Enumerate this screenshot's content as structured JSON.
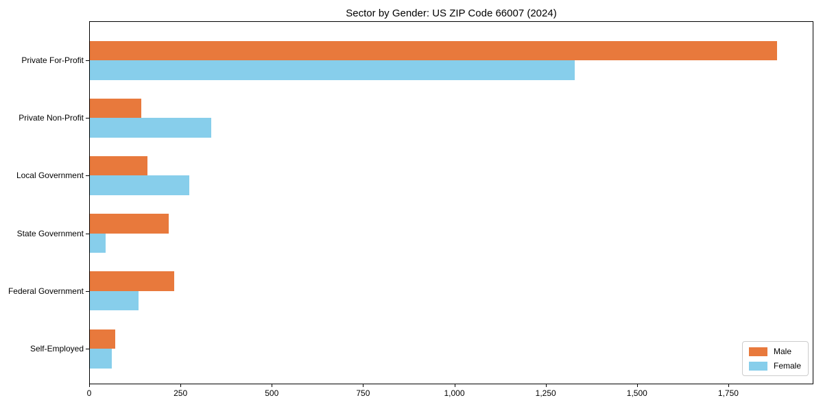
{
  "chart_data": {
    "type": "bar",
    "orientation": "horizontal",
    "title": "Sector by Gender: US ZIP Code 66007 (2024)",
    "categories": [
      "Private For-Profit",
      "Private Non-Profit",
      "Local Government",
      "State Government",
      "Federal Government",
      "Self-Employed"
    ],
    "series": [
      {
        "name": "Male",
        "color": "#e8793c",
        "values": [
          1885,
          141,
          158,
          216,
          231,
          69
        ]
      },
      {
        "name": "Female",
        "color": "#87ceeb",
        "values": [
          1330,
          333,
          272,
          43,
          133,
          61
        ]
      }
    ],
    "xlabel": "",
    "ylabel": "",
    "xlim": [
      0,
      1983
    ],
    "xticks": [
      {
        "value": 0,
        "label": "0"
      },
      {
        "value": 250,
        "label": "250"
      },
      {
        "value": 500,
        "label": "500"
      },
      {
        "value": 750,
        "label": "750"
      },
      {
        "value": 1000,
        "label": "1,000"
      },
      {
        "value": 1250,
        "label": "1,250"
      },
      {
        "value": 1500,
        "label": "1,500"
      },
      {
        "value": 1750,
        "label": "1,750"
      }
    ],
    "grid": false,
    "legend_position": "lower right",
    "background_color": "#ffffff",
    "spine_color": "#000000"
  }
}
